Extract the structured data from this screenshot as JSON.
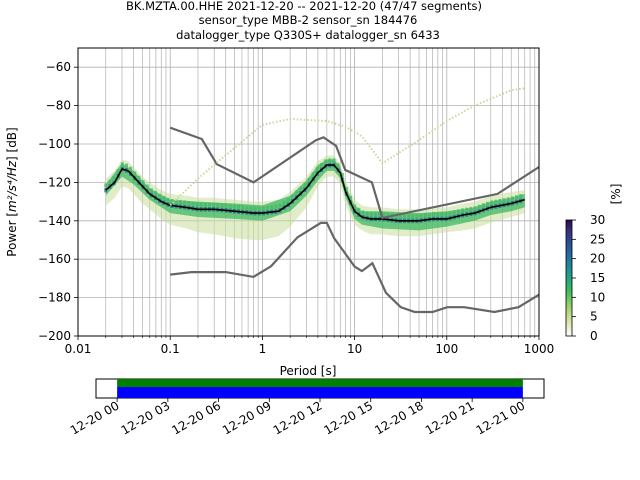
{
  "chart_data": [
    {
      "type": "heatmap",
      "title_lines": [
        "BK.MZTA.00.HHE   2021-12-20 -- 2021-12-20  (47/47 segments)",
        "sensor_type MBB-2 sensor_sn 184476",
        "datalogger_type Q330S+ datalogger_sn 6433"
      ],
      "xlabel": "Period [s]",
      "ylabel_main": "Power [",
      "ylabel_unit": "m²/s⁴/Hz",
      "ylabel_tail": "] [dB]",
      "xscale": "log",
      "xlim": [
        0.01,
        1000
      ],
      "ylim": [
        -200,
        -50
      ],
      "grid": true,
      "x_ticks": [
        {
          "v": 0.01,
          "label": "0.01"
        },
        {
          "v": 0.1,
          "label": "0.1"
        },
        {
          "v": 1,
          "label": "1"
        },
        {
          "v": 10,
          "label": "10"
        },
        {
          "v": 100,
          "label": "100"
        },
        {
          "v": 1000,
          "label": "1000"
        }
      ],
      "y_ticks": [
        {
          "v": -60,
          "label": "−60"
        },
        {
          "v": -80,
          "label": "−80"
        },
        {
          "v": -100,
          "label": "−100"
        },
        {
          "v": -120,
          "label": "−120"
        },
        {
          "v": -140,
          "label": "−140"
        },
        {
          "v": -160,
          "label": "−160"
        },
        {
          "v": -180,
          "label": "−180"
        },
        {
          "v": -200,
          "label": "−200"
        }
      ],
      "colorbar": {
        "label": "[%]",
        "range": [
          0,
          30
        ],
        "ticks": [
          {
            "v": 0,
            "label": "0"
          },
          {
            "v": 5,
            "label": "5"
          },
          {
            "v": 10,
            "label": "10"
          },
          {
            "v": 15,
            "label": "15"
          },
          {
            "v": 20,
            "label": "20"
          },
          {
            "v": 25,
            "label": "25"
          },
          {
            "v": 30,
            "label": "30"
          }
        ]
      },
      "series": [
        {
          "role": "mode",
          "color": "#000000",
          "x": [
            0.02,
            0.025,
            0.03,
            0.035,
            0.04,
            0.05,
            0.06,
            0.08,
            0.1,
            0.15,
            0.2,
            0.3,
            0.5,
            0.8,
            1,
            1.5,
            2,
            3,
            4,
            5,
            6,
            7,
            8,
            10,
            12,
            15,
            20,
            30,
            50,
            70,
            100,
            150,
            200,
            300,
            500,
            700
          ],
          "y": [
            -124,
            -120,
            -113,
            -114,
            -117,
            -122,
            -126,
            -130,
            -132,
            -133,
            -134,
            -134,
            -135,
            -136,
            -136,
            -135,
            -131,
            -123,
            -115,
            -111,
            -111,
            -115,
            -125,
            -135,
            -138,
            -139,
            -139,
            -140,
            -140,
            -139,
            -139,
            -137,
            -136,
            -133,
            -131,
            -129
          ]
        },
        {
          "role": "nhnm",
          "color": "#666666",
          "x": [
            0.1,
            0.22,
            0.32,
            0.8,
            3.8,
            4.6,
            6.3,
            7.9,
            15.4,
            20,
            354.8,
            1000
          ],
          "y": [
            -91.5,
            -97.4,
            -110.5,
            -120,
            -98,
            -96.5,
            -101,
            -113.5,
            -120,
            -138.5,
            -126,
            -112
          ]
        },
        {
          "role": "nlnm",
          "color": "#666666",
          "x": [
            0.1,
            0.17,
            0.4,
            0.8,
            1.24,
            2.4,
            4.3,
            5.0,
            6.0,
            10.0,
            12.0,
            15.6,
            21.9,
            31.6,
            45,
            70,
            101,
            154,
            328,
            600,
            1000
          ],
          "y": [
            -168,
            -166.7,
            -166.7,
            -169.2,
            -163.7,
            -148.6,
            -141.1,
            -141.1,
            -149,
            -163.8,
            -166.2,
            -162.1,
            -177.5,
            -185,
            -187.5,
            -187.5,
            -185,
            -185,
            -187.5,
            -185,
            -178.5
          ]
        },
        {
          "role": "gsn-bound",
          "color": "#c8d89a",
          "x": [
            0.1,
            0.2,
            0.5,
            1,
            2,
            5,
            8,
            12,
            20,
            50,
            100,
            200,
            500,
            700
          ],
          "y": [
            -132,
            -118,
            -102,
            -90,
            -87,
            -88,
            -91,
            -96,
            -110,
            -98,
            -88,
            -80,
            -72,
            -71
          ]
        }
      ],
      "density_bands": [
        {
          "x": [
            0.02,
            0.025,
            0.03,
            0.035,
            0.04,
            0.05,
            0.06,
            0.08,
            0.1,
            0.15,
            0.2,
            0.3,
            0.5,
            0.8,
            1,
            1.5,
            2,
            3,
            4,
            5,
            6,
            7,
            8,
            10,
            12,
            15,
            20,
            30,
            50,
            70,
            100,
            150,
            200,
            300,
            500,
            700
          ],
          "lower": [
            -132,
            -128,
            -122,
            -123,
            -126,
            -131,
            -134,
            -139,
            -142,
            -144,
            -146,
            -147,
            -149,
            -150,
            -150,
            -148,
            -143,
            -133,
            -122,
            -117,
            -117,
            -121,
            -132,
            -142,
            -145,
            -147,
            -147,
            -148,
            -148,
            -147,
            -146,
            -145,
            -144,
            -141,
            -138,
            -136
          ],
          "upper": [
            -118,
            -114,
            -108,
            -109,
            -112,
            -117,
            -120,
            -124,
            -126,
            -127,
            -128,
            -128,
            -129,
            -130,
            -130,
            -129,
            -125,
            -117,
            -109,
            -106,
            -106,
            -110,
            -119,
            -129,
            -132,
            -133,
            -133,
            -134,
            -134,
            -133,
            -133,
            -131,
            -130,
            -127,
            -125,
            -124
          ],
          "level": 3
        },
        {
          "x": [
            0.02,
            0.03,
            0.04,
            0.06,
            0.1,
            0.2,
            0.5,
            1,
            2,
            3,
            4,
            5,
            6,
            7,
            8,
            10,
            12,
            20,
            50,
            100,
            200,
            300,
            500,
            700
          ],
          "lower": [
            -127,
            -117,
            -121,
            -129,
            -136,
            -138,
            -139,
            -140,
            -135,
            -127,
            -119,
            -114,
            -114,
            -118,
            -128,
            -139,
            -142,
            -144,
            -145,
            -143,
            -140,
            -137,
            -135,
            -133
          ],
          "upper": [
            -121,
            -110,
            -114,
            -123,
            -129,
            -130,
            -131,
            -132,
            -127,
            -119,
            -111,
            -108,
            -108,
            -112,
            -122,
            -132,
            -135,
            -135,
            -136,
            -135,
            -133,
            -130,
            -128,
            -126
          ],
          "level": 12
        }
      ]
    },
    {
      "type": "bar",
      "role": "data-availability",
      "x_ticks": [
        {
          "v": 0,
          "label": "12-20 00"
        },
        {
          "v": 3,
          "label": "12-20 03"
        },
        {
          "v": 6,
          "label": "12-20 06"
        },
        {
          "v": 9,
          "label": "12-20 09"
        },
        {
          "v": 12,
          "label": "12-20 12"
        },
        {
          "v": 15,
          "label": "12-20 15"
        },
        {
          "v": 18,
          "label": "12-20 18"
        },
        {
          "v": 21,
          "label": "12-20 21"
        },
        {
          "v": 24,
          "label": "12-21 00"
        }
      ],
      "xlim": [
        -1.25,
        25.25
      ],
      "bars": [
        {
          "role": "used-data",
          "start": 0,
          "end": 24,
          "color": "#008000"
        },
        {
          "role": "all-data",
          "start": 0,
          "end": 24,
          "color": "#0000ff"
        }
      ]
    }
  ]
}
